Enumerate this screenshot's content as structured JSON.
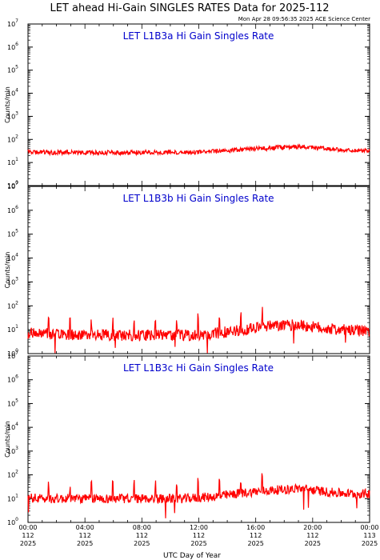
{
  "title": "LET ahead Hi-Gain SINGLES RATES Data for 2025-112",
  "timestamp": "Mon Apr 28 09:56:35 2025 ACE Science Center",
  "xlabel": "UTC Day of Year",
  "ylabel": "Counts/min",
  "colors": {
    "trace": "#ff0000",
    "panel_title": "#0000cc",
    "axis": "#000000"
  },
  "chart_data": [
    {
      "type": "line",
      "title": "LET L1B3a Hi Gain Singles Rate",
      "ylabel": "Counts/min",
      "yscale": "log",
      "ylim": [
        1,
        10000000
      ],
      "yticks": [
        {
          "base": "10",
          "exp": "0"
        },
        {
          "base": "10",
          "exp": "1"
        },
        {
          "base": "10",
          "exp": "2"
        },
        {
          "base": "10",
          "exp": "3"
        },
        {
          "base": "10",
          "exp": "4"
        },
        {
          "base": "10",
          "exp": "5"
        },
        {
          "base": "10",
          "exp": "6"
        },
        {
          "base": "10",
          "exp": "7"
        }
      ],
      "xlim": [
        "2025-112 00:00",
        "2025-113 00:00"
      ],
      "series": [
        {
          "x": [
            "00:00",
            "01:00",
            "02:00",
            "03:00",
            "04:00",
            "05:00",
            "06:00",
            "07:00",
            "08:00",
            "09:00",
            "10:00",
            "11:00",
            "12:00",
            "13:00",
            "14:00",
            "15:00",
            "16:00",
            "17:00",
            "18:00",
            "19:00",
            "20:00",
            "21:00",
            "22:00",
            "23:00",
            "24:00"
          ],
          "values": [
            30,
            28,
            27,
            28,
            27,
            27,
            27,
            27,
            28,
            28,
            28,
            27,
            28,
            30,
            32,
            36,
            40,
            42,
            46,
            50,
            45,
            38,
            35,
            33,
            34
          ]
        }
      ]
    },
    {
      "type": "line",
      "title": "LET L1B3b Hi Gain Singles Rate",
      "ylabel": "Counts/min",
      "yscale": "log",
      "ylim": [
        1,
        10000000
      ],
      "yticks": [
        {
          "base": "10",
          "exp": "0"
        },
        {
          "base": "10",
          "exp": "1"
        },
        {
          "base": "10",
          "exp": "2"
        },
        {
          "base": "10",
          "exp": "3"
        },
        {
          "base": "10",
          "exp": "4"
        },
        {
          "base": "10",
          "exp": "5"
        },
        {
          "base": "10",
          "exp": "6"
        },
        {
          "base": "10",
          "exp": "7"
        }
      ],
      "xlim": [
        "2025-112 00:00",
        "2025-113 00:00"
      ],
      "series": [
        {
          "x": [
            "00:00",
            "01:00",
            "02:00",
            "03:00",
            "04:00",
            "05:00",
            "06:00",
            "07:00",
            "08:00",
            "09:00",
            "10:00",
            "11:00",
            "12:00",
            "13:00",
            "14:00",
            "15:00",
            "16:00",
            "17:00",
            "18:00",
            "19:00",
            "20:00",
            "21:00",
            "22:00",
            "23:00",
            "24:00"
          ],
          "values": [
            7,
            7,
            6,
            6,
            6,
            6,
            6,
            6,
            6,
            6,
            6,
            6,
            6,
            7,
            8,
            10,
            12,
            14,
            15,
            16,
            13,
            11,
            10,
            9,
            9
          ]
        }
      ]
    },
    {
      "type": "line",
      "title": "LET L1B3c Hi Gain Singles Rate",
      "ylabel": "Counts/min",
      "yscale": "log",
      "ylim": [
        1,
        10000000
      ],
      "yticks": [
        {
          "base": "10",
          "exp": "0"
        },
        {
          "base": "10",
          "exp": "1"
        },
        {
          "base": "10",
          "exp": "2"
        },
        {
          "base": "10",
          "exp": "3"
        },
        {
          "base": "10",
          "exp": "4"
        },
        {
          "base": "10",
          "exp": "5"
        },
        {
          "base": "10",
          "exp": "6"
        },
        {
          "base": "10",
          "exp": "7"
        }
      ],
      "xlim": [
        "2025-112 00:00",
        "2025-113 00:00"
      ],
      "series": [
        {
          "x": [
            "00:00",
            "01:00",
            "02:00",
            "03:00",
            "04:00",
            "05:00",
            "06:00",
            "07:00",
            "08:00",
            "09:00",
            "10:00",
            "11:00",
            "12:00",
            "13:00",
            "14:00",
            "15:00",
            "16:00",
            "17:00",
            "18:00",
            "19:00",
            "20:00",
            "21:00",
            "22:00",
            "23:00",
            "24:00"
          ],
          "values": [
            11,
            10,
            10,
            10,
            10,
            10,
            10,
            10,
            10,
            10,
            10,
            10,
            11,
            12,
            14,
            17,
            20,
            22,
            24,
            27,
            23,
            19,
            17,
            16,
            16
          ]
        }
      ]
    }
  ],
  "xticks": [
    {
      "time": "00:00",
      "doy": "112",
      "year": "2025"
    },
    {
      "time": "04:00",
      "doy": "112",
      "year": "2025"
    },
    {
      "time": "08:00",
      "doy": "112",
      "year": "2025"
    },
    {
      "time": "12:00",
      "doy": "112",
      "year": "2025"
    },
    {
      "time": "16:00",
      "doy": "112",
      "year": "2025"
    },
    {
      "time": "20:00",
      "doy": "112",
      "year": "2025"
    },
    {
      "time": "00:00",
      "doy": "113",
      "year": "2025"
    }
  ]
}
